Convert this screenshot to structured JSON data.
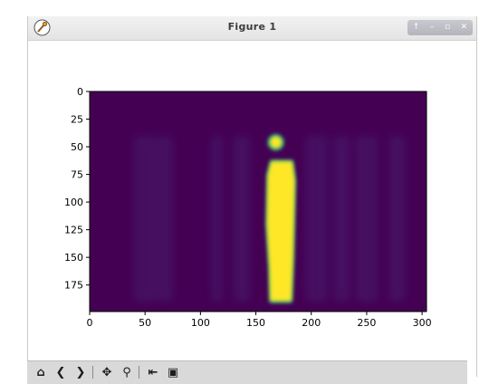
{
  "window": {
    "title": "Figure 1",
    "controls": [
      "↑",
      "–",
      "▫",
      "✕"
    ]
  },
  "toolbar": {
    "items": [
      {
        "name": "home-button",
        "glyph": "⌂"
      },
      {
        "name": "back-button",
        "glyph": "❮"
      },
      {
        "name": "forward-button",
        "glyph": "❯"
      },
      {
        "name": "pan-button",
        "glyph": "✥"
      },
      {
        "name": "zoom-button",
        "glyph": "⚲"
      },
      {
        "name": "configure-subplots-button",
        "glyph": "⇤"
      },
      {
        "name": "save-button",
        "glyph": "▣"
      }
    ]
  },
  "chart_data": {
    "type": "heatmap",
    "title": "",
    "xlabel": "",
    "ylabel": "",
    "xlim": [
      0,
      304
    ],
    "ylim": [
      199,
      0
    ],
    "xticks": [
      0,
      50,
      100,
      150,
      200,
      250,
      300
    ],
    "yticks": [
      0,
      25,
      50,
      75,
      100,
      125,
      150,
      175
    ],
    "colormap": "viridis",
    "background_value_color": "#440154",
    "highlight_color": "#fde725",
    "shape": [
      199,
      304
    ],
    "subject": {
      "description": "standing human silhouette",
      "x_range": [
        160,
        185
      ],
      "y_range": [
        36,
        191
      ]
    },
    "grid": false
  }
}
